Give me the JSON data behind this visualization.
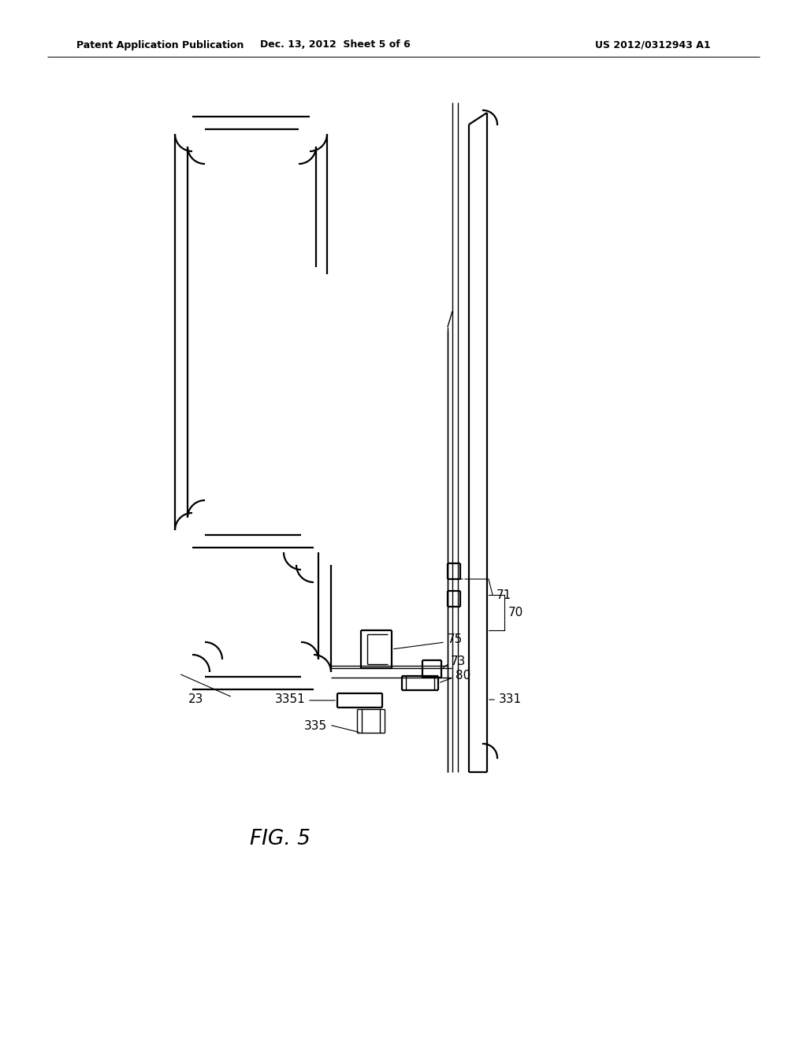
{
  "bg_color": "#ffffff",
  "line_color": "#000000",
  "header_left": "Patent Application Publication",
  "header_mid": "Dec. 13, 2012  Sheet 5 of 6",
  "header_right": "US 2012/0312943 A1",
  "fig_label": "FIG. 5",
  "lw_thin": 1.0,
  "lw_med": 1.6,
  "lw_thick": 2.2
}
